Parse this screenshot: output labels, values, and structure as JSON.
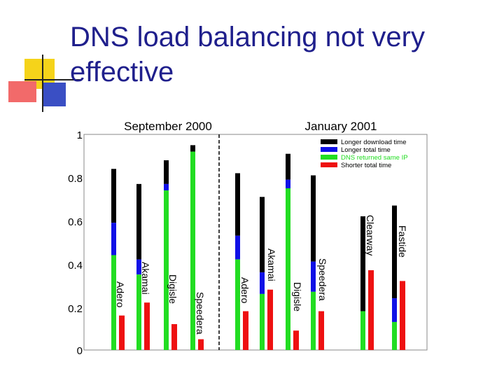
{
  "slide": {
    "title": "DNS load balancing not very effective"
  },
  "colors": {
    "title": "#1f1f8c",
    "black_series": "#000000",
    "blue_series": "#1010e6",
    "green_series": "#22dd22",
    "red_series": "#ee1111",
    "deco_yellow": "#f5d31a",
    "deco_red": "#f26a6a",
    "deco_blue": "#3a4fc4"
  },
  "chart_data": {
    "type": "bar",
    "y_ticks": [
      "0",
      "0.2",
      "0.4",
      "0.6",
      "0.8",
      "1"
    ],
    "ylim": [
      0,
      1
    ],
    "periods": [
      "September 2000",
      "January 2001"
    ],
    "legend": [
      {
        "key": "longer_download",
        "label": "Longer download time",
        "color": "#000000"
      },
      {
        "key": "longer_total",
        "label": "Longer total time",
        "color": "#1010e6"
      },
      {
        "key": "same_ip",
        "label": "DNS returned same IP",
        "color": "#22dd22"
      },
      {
        "key": "shorter_total",
        "label": "Shorter total time",
        "color": "#ee1111"
      }
    ],
    "groups": [
      {
        "name": "Adero",
        "period": "September 2000",
        "stack": {
          "same_ip": 0.44,
          "longer_total": 0.59,
          "longer_download": 0.84
        },
        "shorter_total": 0.16
      },
      {
        "name": "Akamai",
        "period": "September 2000",
        "stack": {
          "same_ip": 0.35,
          "longer_total": 0.42,
          "longer_download": 0.77
        },
        "shorter_total": 0.22
      },
      {
        "name": "Digisle",
        "period": "September 2000",
        "stack": {
          "same_ip": 0.74,
          "longer_total": 0.77,
          "longer_download": 0.88
        },
        "shorter_total": 0.12
      },
      {
        "name": "Speedera",
        "period": "September 2000",
        "stack": {
          "same_ip": 0.92,
          "longer_total": 0.92,
          "longer_download": 0.95
        },
        "shorter_total": 0.05
      },
      {
        "name": "Adero",
        "period": "January 2001",
        "stack": {
          "same_ip": 0.42,
          "longer_total": 0.53,
          "longer_download": 0.82
        },
        "shorter_total": 0.18
      },
      {
        "name": "Akamai",
        "period": "January 2001",
        "stack": {
          "same_ip": 0.26,
          "longer_total": 0.36,
          "longer_download": 0.71
        },
        "shorter_total": 0.28
      },
      {
        "name": "Digisle",
        "period": "January 2001",
        "stack": {
          "same_ip": 0.75,
          "longer_total": 0.79,
          "longer_download": 0.91
        },
        "shorter_total": 0.09
      },
      {
        "name": "Speedera",
        "period": "January 2001",
        "stack": {
          "same_ip": 0.27,
          "longer_total": 0.41,
          "longer_download": 0.81
        },
        "shorter_total": 0.18
      },
      {
        "name": "Clearway",
        "period": "January 2001",
        "stack": {
          "same_ip": 0.18,
          "longer_total": 0.18,
          "longer_download": 0.62
        },
        "shorter_total": 0.37
      },
      {
        "name": "Fastide",
        "period": "January 2001",
        "stack": {
          "same_ip": 0.13,
          "longer_total": 0.24,
          "longer_download": 0.67
        },
        "shorter_total": 0.32
      }
    ]
  }
}
